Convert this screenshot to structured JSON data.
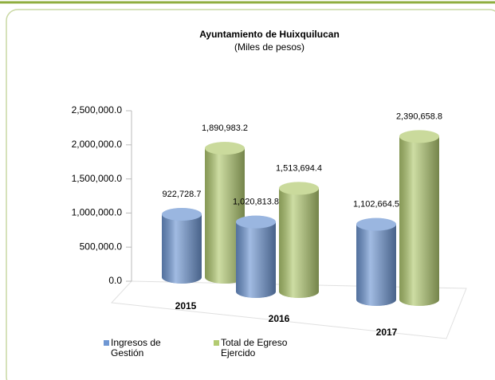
{
  "chart_data": {
    "type": "bar",
    "title": "Ayuntamiento de Huixquilucan",
    "subtitle": "(Miles de pesos)",
    "categories": [
      "2015",
      "2016",
      "2017"
    ],
    "series": [
      {
        "name": "Ingresos de Gestión",
        "color": "#6f97d3",
        "values": [
          922728.7,
          1020813.8,
          1102664.5
        ],
        "value_labels": [
          "922,728.7",
          "1,020,813.8",
          "1,102,664.5"
        ]
      },
      {
        "name": "Total de Egreso Ejercido",
        "color": "#b3cb72",
        "values": [
          1890983.2,
          1513694.4,
          2390658.8
        ],
        "value_labels": [
          "1,890,983.2",
          "1,513,694.4",
          "2,390,658.8"
        ]
      }
    ],
    "ylim": [
      0,
      2500000
    ],
    "yticks": [
      {
        "value": 0,
        "label": "0.0"
      },
      {
        "value": 500000,
        "label": "500,000.0"
      },
      {
        "value": 1000000,
        "label": "1,000,000.0"
      },
      {
        "value": 1500000,
        "label": "1,500,000.0"
      },
      {
        "value": 2000000,
        "label": "2,000,000.0"
      },
      {
        "value": 2500000,
        "label": "2,500,000.0"
      }
    ],
    "legend": "bottom"
  }
}
